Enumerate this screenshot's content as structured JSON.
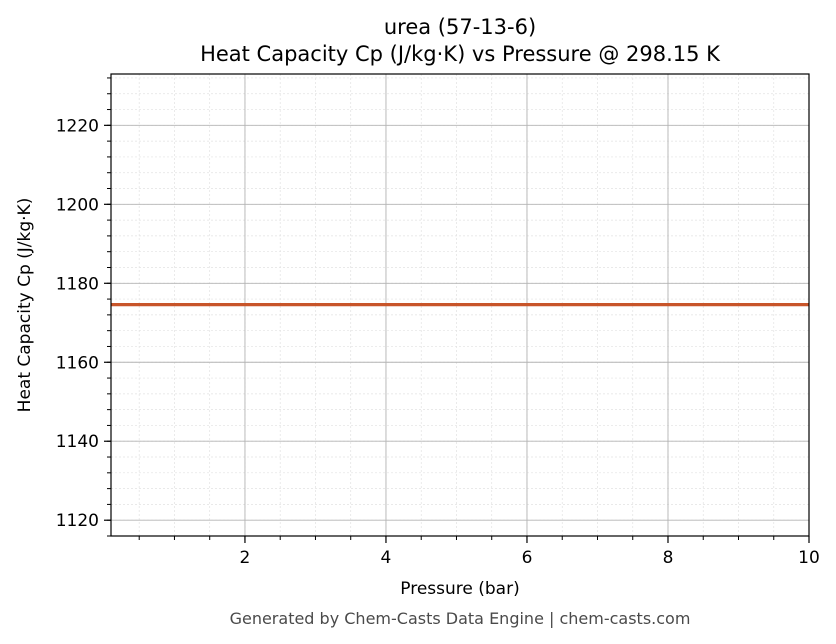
{
  "chart_data": {
    "type": "line",
    "title": "urea (57-13-6)",
    "subtitle": "Heat Capacity Cp (J/kg·K) vs Pressure @ 298.15 K",
    "xlabel": "Pressure (bar)",
    "ylabel": "Heat Capacity Cp (J/kg·K)",
    "xlim": [
      0.1,
      10
    ],
    "ylim": [
      1116,
      1233
    ],
    "x_ticks": [
      2,
      4,
      6,
      8,
      10
    ],
    "y_ticks": [
      1120,
      1140,
      1160,
      1180,
      1200,
      1220
    ],
    "x_minor_step": 0.5,
    "y_minor_step": 4,
    "grid": true,
    "series": [
      {
        "color": "#c8552a",
        "x": [
          0.1,
          1,
          2,
          3,
          4,
          5,
          6,
          7,
          8,
          9,
          10
        ],
        "y": [
          1174.6,
          1174.6,
          1174.6,
          1174.6,
          1174.6,
          1174.6,
          1174.6,
          1174.6,
          1174.6,
          1174.6,
          1174.6
        ]
      }
    ]
  },
  "footer": "Generated by Chem-Casts Data Engine | chem-casts.com"
}
